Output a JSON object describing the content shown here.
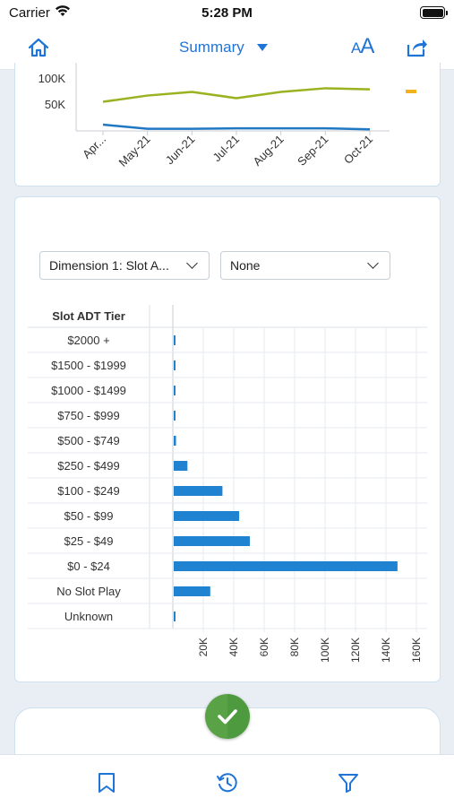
{
  "status": {
    "carrier": "Carrier",
    "time": "5:28 PM"
  },
  "nav": {
    "title": "Summary",
    "font_label_small": "A",
    "font_label_large": "A"
  },
  "trend_chart": {
    "y_ticks": [
      "100K",
      "50K"
    ],
    "x_ticks": [
      "Apr...",
      "May-21",
      "Jun-21",
      "Jul-21",
      "Aug-21",
      "Sep-21",
      "Oct-21"
    ],
    "series": [
      {
        "color": "#9ab220",
        "values": [
          56000,
          68000,
          75000,
          63000,
          75000,
          82000,
          80000
        ]
      },
      {
        "color": "#2077c2",
        "values": [
          12000,
          4000,
          4000,
          5000,
          5000,
          5000,
          3000
        ]
      }
    ],
    "legend_color": "#f2b21f"
  },
  "filters": {
    "dimension1": "Dimension 1: Slot A...",
    "dimension2": "None"
  },
  "chart_data": {
    "type": "bar",
    "orientation": "horizontal",
    "column_header": "Slot ADT Tier",
    "categories": [
      "$2000 +",
      "$1500 - $1999",
      "$1000 - $1499",
      "$750 - $999",
      "$500 - $749",
      "$250 - $499",
      "$100 - $249",
      "$50 - $99",
      "$25 - $49",
      "$0 - $24",
      "No Slot Play",
      "Unknown"
    ],
    "values": [
      300,
      300,
      300,
      300,
      1500,
      9000,
      32000,
      43000,
      50000,
      147000,
      24000,
      300
    ],
    "x_ticks": [
      "20K",
      "40K",
      "60K",
      "80K",
      "100K",
      "120K",
      "140K",
      "160K"
    ],
    "xlim": [
      0,
      160000
    ],
    "bar_color": "#1f83d2"
  }
}
